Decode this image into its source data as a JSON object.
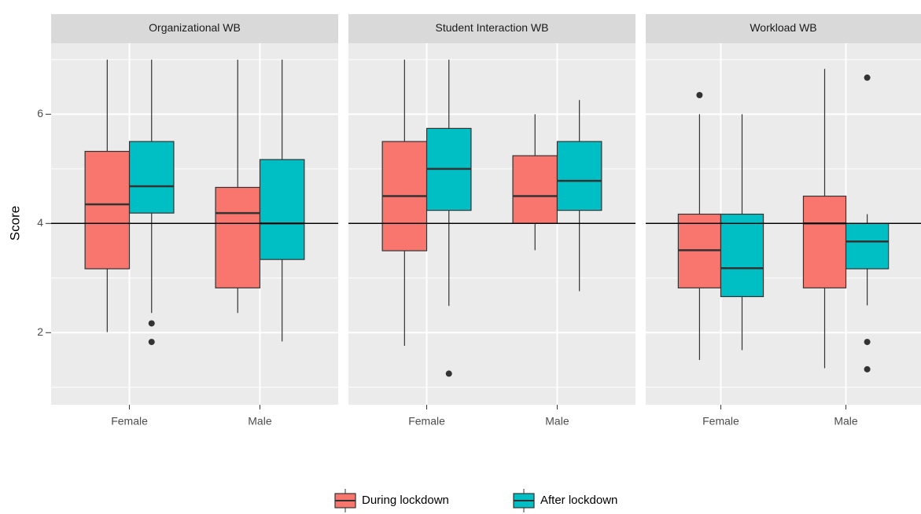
{
  "chart_data": {
    "type": "box",
    "ylabel": "Score",
    "ylim": [
      0.68,
      7.3
    ],
    "yticks": [
      2,
      4,
      6
    ],
    "minor_yticks": [
      1,
      3,
      5,
      7
    ],
    "hline": 4,
    "grid": true,
    "legend": "bottom",
    "categories": [
      "Female",
      "Male"
    ],
    "series": [
      {
        "name": "During lockdown",
        "color": "#f8766d"
      },
      {
        "name": "After lockdown",
        "color": "#00bfc4"
      }
    ],
    "facets": [
      {
        "title": "Organizational WB",
        "series": [
          {
            "values": [
              {
                "whisker_low": 2.01,
                "q1": 3.17,
                "median": 4.35,
                "q3": 5.32,
                "whisker_high": 7.0,
                "outliers": []
              },
              {
                "whisker_low": 2.36,
                "q1": 2.82,
                "median": 4.19,
                "q3": 4.66,
                "whisker_high": 7.0,
                "outliers": []
              }
            ]
          },
          {
            "values": [
              {
                "whisker_low": 2.36,
                "q1": 4.19,
                "median": 4.68,
                "q3": 5.5,
                "whisker_high": 7.0,
                "outliers": [
                  2.17,
                  1.83
                ]
              },
              {
                "whisker_low": 1.84,
                "q1": 3.34,
                "median": 4.0,
                "q3": 5.17,
                "whisker_high": 7.0,
                "outliers": []
              }
            ]
          }
        ]
      },
      {
        "title": "Student Interaction WB",
        "series": [
          {
            "values": [
              {
                "whisker_low": 1.76,
                "q1": 3.5,
                "median": 4.5,
                "q3": 5.5,
                "whisker_high": 7.0,
                "outliers": []
              },
              {
                "whisker_low": 3.51,
                "q1": 4.0,
                "median": 4.5,
                "q3": 5.24,
                "whisker_high": 6.0,
                "outliers": []
              }
            ]
          },
          {
            "values": [
              {
                "whisker_low": 2.49,
                "q1": 4.24,
                "median": 5.0,
                "q3": 5.74,
                "whisker_high": 7.0,
                "outliers": [
                  1.25
                ]
              },
              {
                "whisker_low": 2.76,
                "q1": 4.24,
                "median": 4.78,
                "q3": 5.5,
                "whisker_high": 6.26,
                "outliers": []
              }
            ]
          }
        ]
      },
      {
        "title": "Workload WB",
        "series": [
          {
            "values": [
              {
                "whisker_low": 1.5,
                "q1": 2.82,
                "median": 3.51,
                "q3": 4.17,
                "whisker_high": 6.0,
                "outliers": [
                  6.35
                ]
              },
              {
                "whisker_low": 1.35,
                "q1": 2.82,
                "median": 4.0,
                "q3": 4.5,
                "whisker_high": 6.83,
                "outliers": []
              }
            ]
          },
          {
            "values": [
              {
                "whisker_low": 1.68,
                "q1": 2.66,
                "median": 3.18,
                "q3": 4.17,
                "whisker_high": 6.0,
                "outliers": []
              },
              {
                "whisker_low": 2.5,
                "q1": 3.17,
                "median": 3.67,
                "q3": 4.0,
                "whisker_high": 4.17,
                "outliers": [
                  6.67,
                  1.83,
                  1.33
                ]
              }
            ]
          }
        ]
      }
    ]
  }
}
